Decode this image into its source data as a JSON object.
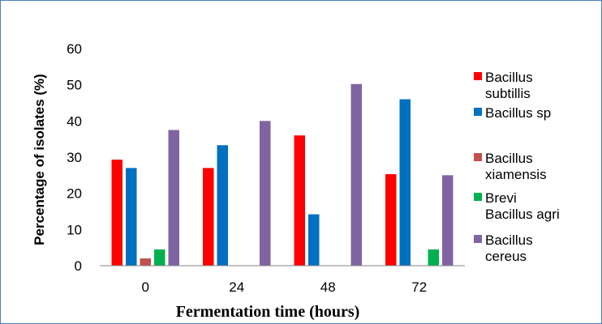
{
  "chart_data": {
    "type": "bar",
    "categories": [
      "0",
      "24",
      "48",
      "72"
    ],
    "series": [
      {
        "name": "Bacillus subtillis",
        "color": "#ff0000",
        "values": [
          29.3,
          27.0,
          36.0,
          25.3
        ]
      },
      {
        "name": "Bacillus sp",
        "color": "#0070c0",
        "values": [
          27.0,
          33.3,
          14.2,
          46.0
        ]
      },
      {
        "name": "Bacillus xiamensis",
        "color": "#c0504d",
        "values": [
          2.0,
          0,
          0,
          0
        ]
      },
      {
        "name": "Brevi Bacillus agri",
        "color": "#00b050",
        "values": [
          4.5,
          0,
          0,
          4.5
        ]
      },
      {
        "name": "Bacillus cereus",
        "color": "#8064a2",
        "values": [
          37.5,
          40.0,
          50.2,
          25.0
        ]
      }
    ],
    "legend": [
      {
        "lines": [
          "Bacillus",
          "subtillis"
        ]
      },
      {
        "lines": [
          "Bacillus sp"
        ]
      },
      {
        "lines": [
          "Bacillus",
          "xiamensis"
        ]
      },
      {
        "lines": [
          "Brevi",
          "Bacillus agri"
        ]
      },
      {
        "lines": [
          "Bacillus",
          "cereus"
        ]
      }
    ],
    "legend_position": "right",
    "xlabel": "Fermentation time (hours)",
    "ylabel": "Percentage of isolates (%)",
    "ylim": [
      0,
      60
    ],
    "yticks": [
      0,
      10,
      20,
      30,
      40,
      50,
      60
    ],
    "grid": false
  }
}
